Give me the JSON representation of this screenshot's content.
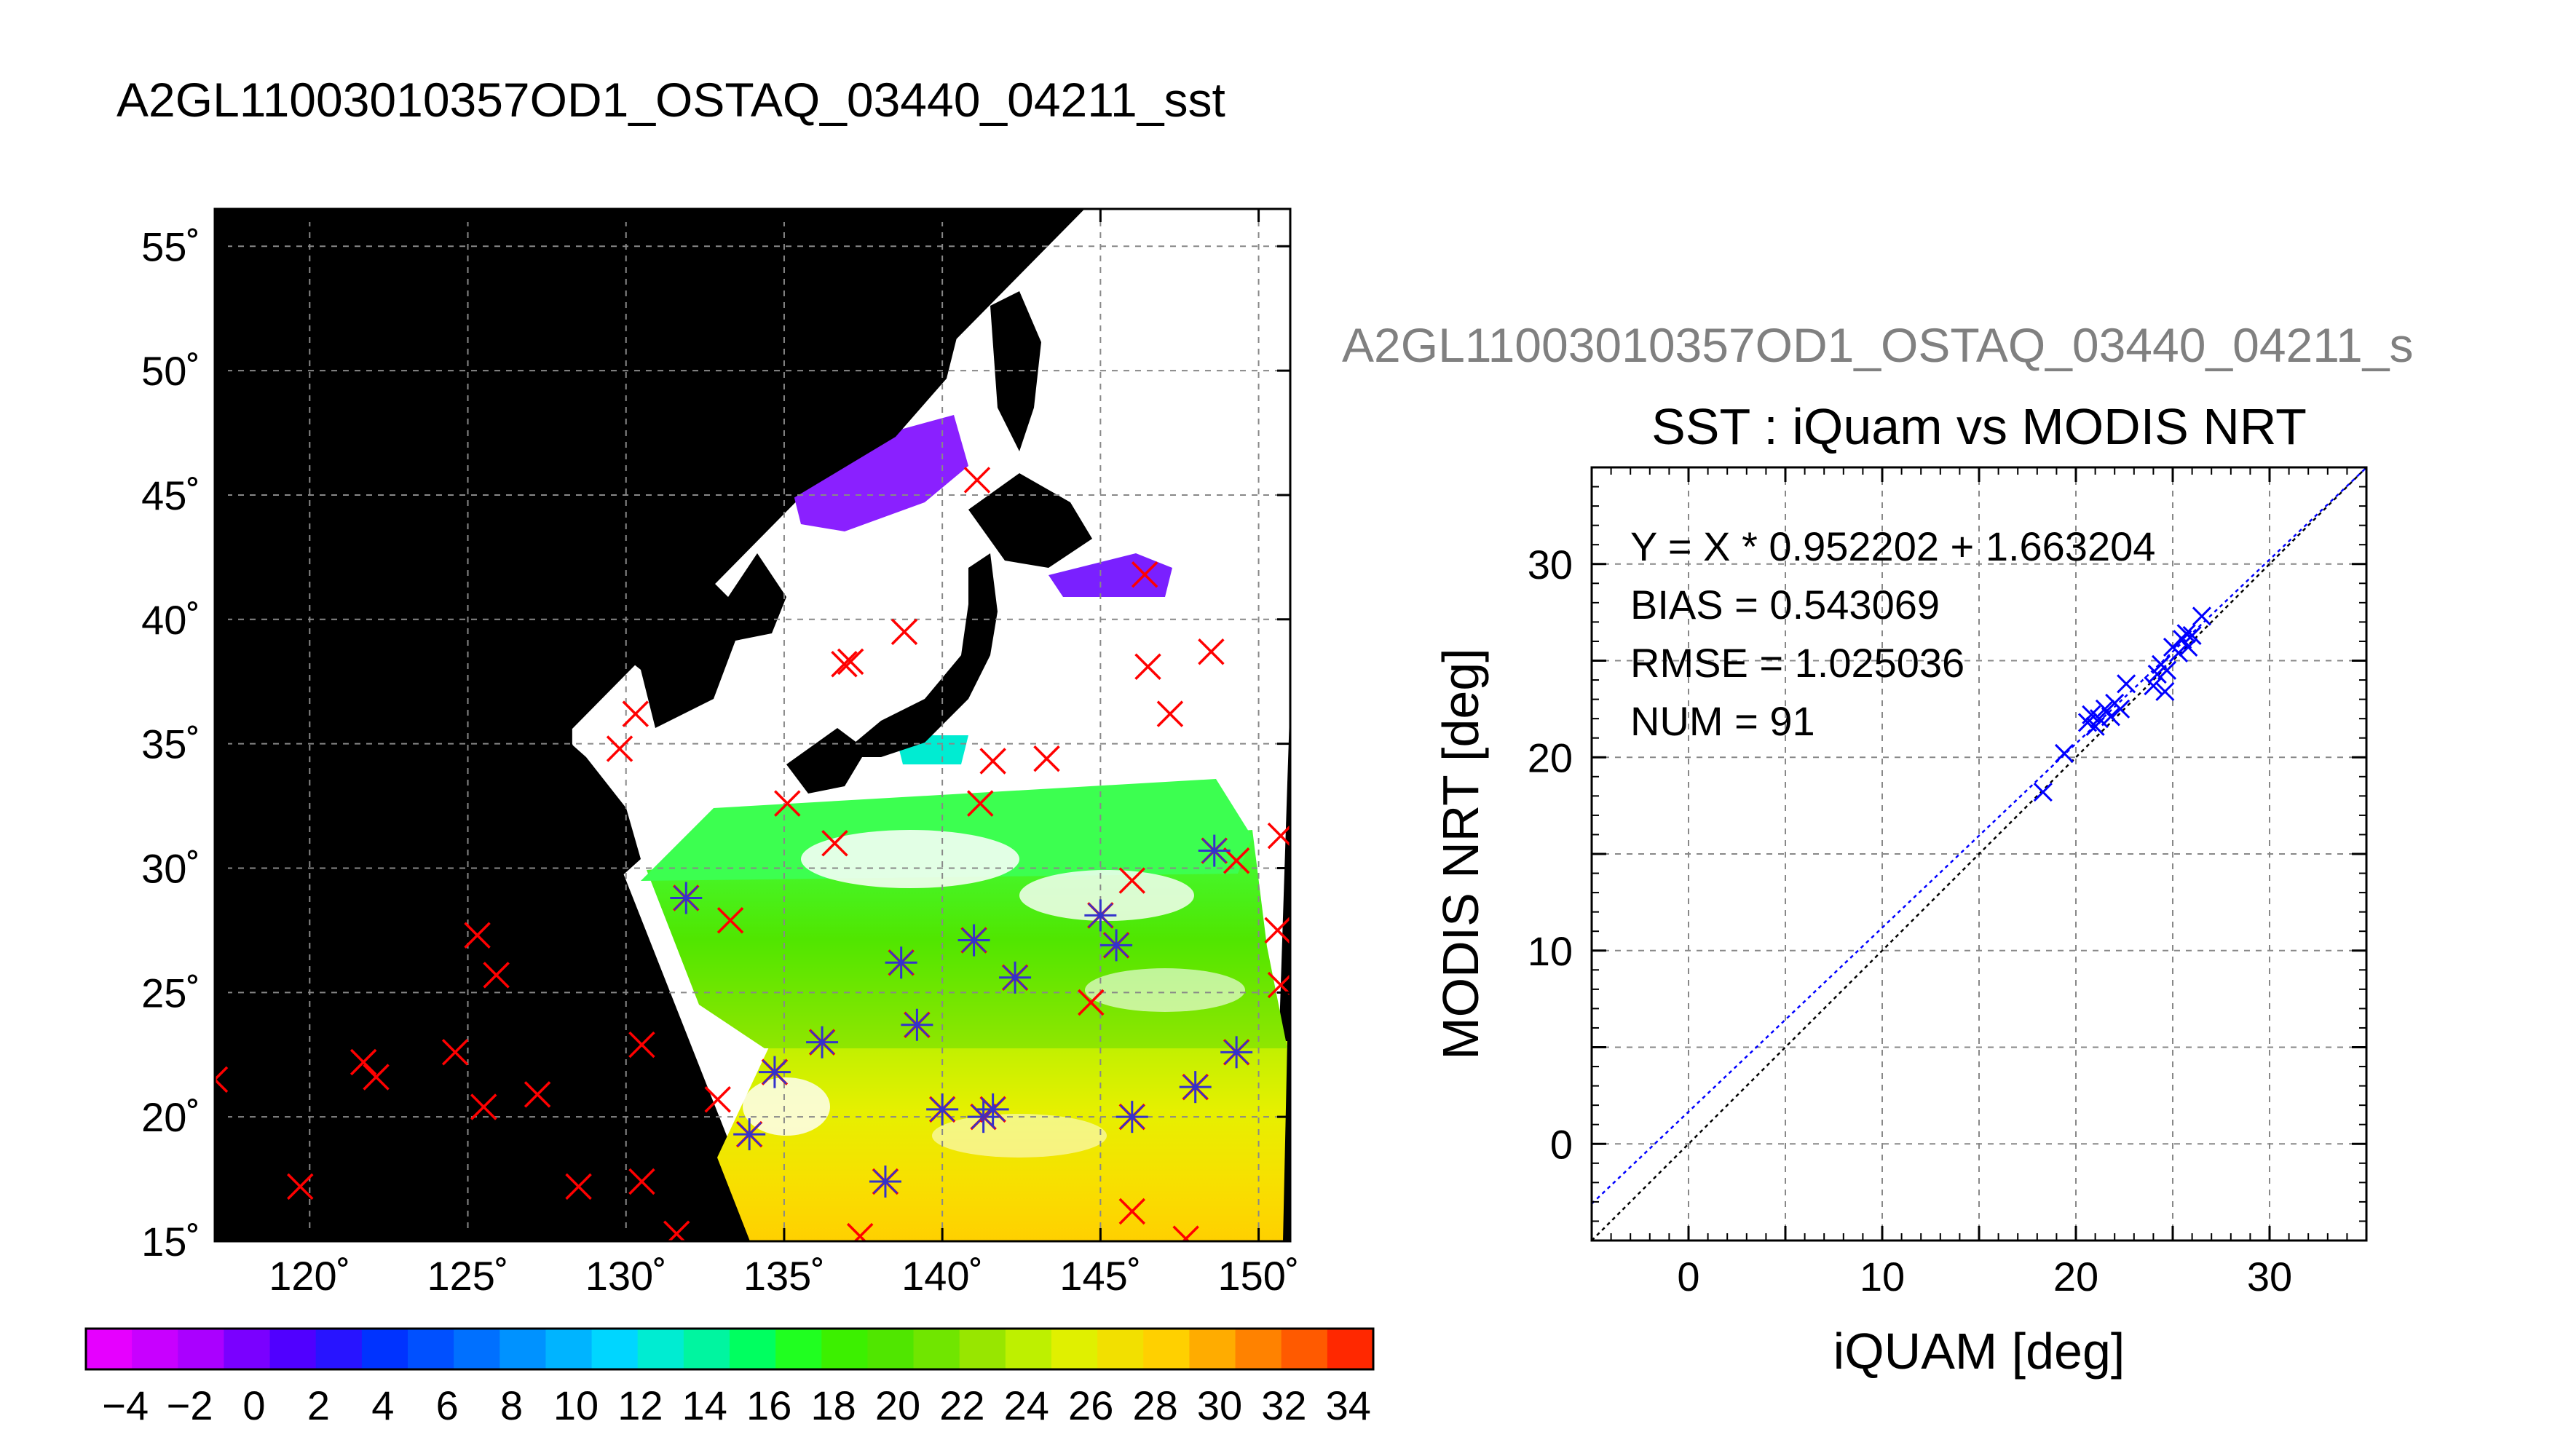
{
  "title": "A2GL11003010357OD1_OSTAQ_03440_04211_sst",
  "map": {
    "type": "map",
    "lat_ticks": [
      "15˚",
      "20˚",
      "25˚",
      "30˚",
      "35˚",
      "40˚",
      "45˚",
      "50˚",
      "55˚"
    ],
    "lat_values": [
      15,
      20,
      25,
      30,
      35,
      40,
      45,
      50,
      55
    ],
    "lon_ticks": [
      "120˚",
      "125˚",
      "130˚",
      "135˚",
      "140˚",
      "145˚",
      "150˚"
    ],
    "lon_values": [
      120,
      125,
      130,
      135,
      140,
      145,
      150
    ],
    "lon_range": [
      117,
      151
    ],
    "lat_range": [
      15,
      56.5
    ],
    "grid": true,
    "swath_corners": [
      [
        144.5,
        56.5
      ],
      [
        151.5,
        56.5
      ],
      [
        150.5,
        17.5
      ],
      [
        134.5,
        15
      ],
      [
        128.3,
        35
      ],
      [
        128.3,
        35.6
      ],
      [
        144.5,
        56.5
      ]
    ],
    "iquam_points": [
      [
        117,
        21.5
      ],
      [
        119.7,
        17.2
      ],
      [
        121.7,
        22.2
      ],
      [
        122.1,
        21.6
      ],
      [
        124.6,
        22.6
      ],
      [
        125.3,
        27.3
      ],
      [
        125.5,
        20.4
      ],
      [
        125.9,
        25.7
      ],
      [
        127.2,
        20.9
      ],
      [
        128.5,
        17.2
      ],
      [
        129.8,
        34.8
      ],
      [
        130.3,
        36.2
      ],
      [
        130.5,
        22.9
      ],
      [
        130.5,
        17.4
      ],
      [
        131.6,
        15.3
      ],
      [
        132.9,
        20.7
      ],
      [
        133.3,
        27.9
      ],
      [
        135.1,
        32.6
      ],
      [
        136.6,
        31
      ],
      [
        137.1,
        38.3
      ],
      [
        138.8,
        39.5
      ],
      [
        141.1,
        45.6
      ],
      [
        141.2,
        32.6
      ],
      [
        141.6,
        34.3
      ],
      [
        143.3,
        34.4
      ],
      [
        144.7,
        24.6
      ],
      [
        146,
        16.2
      ],
      [
        146.4,
        41.8
      ],
      [
        146.5,
        38.1
      ],
      [
        147.2,
        36.2
      ],
      [
        147.7,
        15.1
      ],
      [
        148.5,
        38.7
      ],
      [
        149.3,
        30.3
      ],
      [
        150.7,
        31.3
      ],
      [
        150.6,
        27.5
      ],
      [
        150.7,
        25.3
      ],
      [
        137.4,
        15.2
      ],
      [
        136.9,
        38.2
      ],
      [
        146,
        29.5
      ]
    ],
    "matched_points": [
      [
        131.9,
        28.8
      ],
      [
        133.9,
        19.3
      ],
      [
        134.7,
        21.8
      ],
      [
        136.2,
        23
      ],
      [
        138.2,
        17.4
      ],
      [
        138.7,
        26.2
      ],
      [
        139.2,
        23.7
      ],
      [
        140,
        20.3
      ],
      [
        141,
        27.1
      ],
      [
        141.3,
        20
      ],
      [
        141.6,
        20.3
      ],
      [
        142.3,
        25.6
      ],
      [
        145,
        28.1
      ],
      [
        145.5,
        26.9
      ],
      [
        146,
        20
      ],
      [
        148,
        21.2
      ],
      [
        148.6,
        30.7
      ],
      [
        149.3,
        22.6
      ]
    ]
  },
  "colorbar": {
    "ticks": [
      "−4",
      "−2",
      "0",
      "2",
      "4",
      "6",
      "8",
      "10",
      "12",
      "14",
      "16",
      "18",
      "20",
      "22",
      "24",
      "26",
      "28",
      "30",
      "32",
      "34"
    ],
    "colors": [
      "#e600ff",
      "#c800ff",
      "#aa00ff",
      "#7a00ff",
      "#5000ff",
      "#2814ff",
      "#0033ff",
      "#0050ff",
      "#0070ff",
      "#0092ff",
      "#00b4ff",
      "#00d6ff",
      "#00ecd2",
      "#00f5a0",
      "#00ff60",
      "#20ff20",
      "#3cf000",
      "#50e600",
      "#70e600",
      "#98e600",
      "#bef000",
      "#e0f000",
      "#f2e000",
      "#ffd000",
      "#ffac00",
      "#ff8200",
      "#ff5a00",
      "#ff2800"
    ]
  },
  "scatter": {
    "subtitle": "A2GL11003010357OD1_OSTAQ_03440_04211_s",
    "title": "SST : iQuam vs MODIS NRT",
    "xlabel": "iQUAM [deg]",
    "ylabel": "MODIS NRT [deg]",
    "stats": [
      "Y = X * 0.952202 + 1.663204",
      "BIAS = 0.543069",
      "RMSE = 1.025036",
      "NUM = 91"
    ],
    "chart_data": {
      "type": "scatter",
      "xlim": [
        -5,
        35
      ],
      "ylim": [
        -5,
        35
      ],
      "xticks": [
        "0",
        "10",
        "20",
        "30"
      ],
      "yticks": [
        "0",
        "10",
        "20",
        "30"
      ],
      "xtick_values": [
        0,
        10,
        20,
        30
      ],
      "ytick_values": [
        0,
        10,
        20,
        30
      ],
      "grid": true,
      "fit": {
        "slope": 0.952202,
        "intercept": 1.663204,
        "color": "#0000ff"
      },
      "identity_line": {
        "color": "#000000"
      },
      "points": [
        [
          18.3,
          18.2
        ],
        [
          19.4,
          20.2
        ],
        [
          20.6,
          21.8
        ],
        [
          20.8,
          22.2
        ],
        [
          21,
          21.6
        ],
        [
          21.2,
          22
        ],
        [
          21.5,
          22.5
        ],
        [
          21.8,
          22.1
        ],
        [
          22,
          22.8
        ],
        [
          22.3,
          22.5
        ],
        [
          22.6,
          23.8
        ],
        [
          24,
          23.7
        ],
        [
          24.2,
          24.3
        ],
        [
          24.4,
          24.8
        ],
        [
          24.7,
          24.5
        ],
        [
          25,
          25.7
        ],
        [
          25.3,
          25.4
        ],
        [
          25.5,
          26.1
        ],
        [
          25.8,
          25.7
        ],
        [
          26,
          26.3
        ],
        [
          26.5,
          27.3
        ],
        [
          24.6,
          23.4
        ],
        [
          25.7,
          26.4
        ]
      ]
    }
  },
  "colors": {
    "land": "#000000",
    "cloud": "#ffffff",
    "iquam_marker": "#ff0000",
    "matched_marker": "#3333cc",
    "scatter_marker": "#0000ff",
    "grid": "#888888",
    "subtitle": "#808080"
  }
}
